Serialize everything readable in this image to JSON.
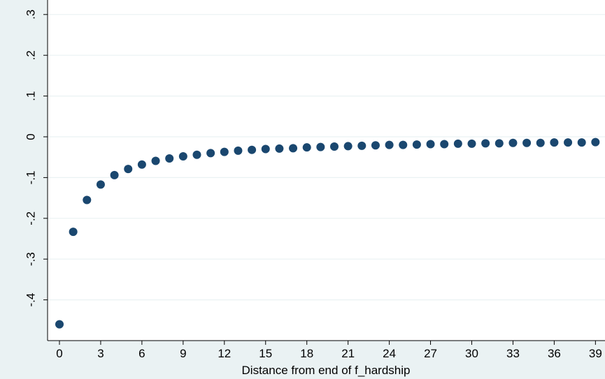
{
  "chart_data": {
    "type": "scatter",
    "title": "",
    "xlabel": "Distance from end of f_hardship",
    "ylabel": "",
    "xlim": [
      -1,
      39.3
    ],
    "ylim": [
      -0.49,
      0.31
    ],
    "x_ticks": [
      0,
      3,
      6,
      9,
      12,
      15,
      18,
      21,
      24,
      27,
      30,
      33,
      36,
      39
    ],
    "y_ticks": [
      -0.4,
      -0.3,
      -0.2,
      -0.1,
      0,
      0.1,
      0.2,
      0.3
    ],
    "y_tick_labels": [
      "-.4",
      "-.3",
      "-.2",
      "-.1",
      "0",
      ".1",
      ".2",
      ".3"
    ],
    "grid": true,
    "legend": "none",
    "marker_color": "#1a476f",
    "plot_background": "#ffffff",
    "page_background": "#eaf2f3",
    "gridline_color": "#eaf2f3",
    "x": [
      0,
      1,
      2,
      3,
      4,
      5,
      6,
      7,
      8,
      9,
      10,
      11,
      12,
      13,
      14,
      15,
      16,
      17,
      18,
      19,
      20,
      21,
      22,
      23,
      24,
      25,
      26,
      27,
      28,
      29,
      30,
      31,
      32,
      33,
      34,
      35,
      36,
      37,
      38,
      39
    ],
    "y": [
      -0.46,
      -0.233,
      -0.155,
      -0.117,
      -0.094,
      -0.079,
      -0.068,
      -0.059,
      -0.053,
      -0.048,
      -0.044,
      -0.04,
      -0.037,
      -0.034,
      -0.032,
      -0.03,
      -0.029,
      -0.028,
      -0.026,
      -0.025,
      -0.024,
      -0.023,
      -0.022,
      -0.021,
      -0.02,
      -0.02,
      -0.019,
      -0.018,
      -0.018,
      -0.017,
      -0.017,
      -0.016,
      -0.016,
      -0.015,
      -0.015,
      -0.015,
      -0.014,
      -0.014,
      -0.014,
      -0.013
    ]
  }
}
